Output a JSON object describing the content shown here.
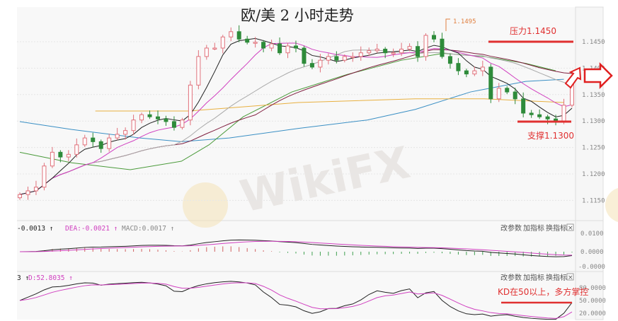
{
  "chart_data": {
    "type": "candlestick",
    "title": "欧/美 2 小时走势",
    "y_ticks": [
      "1.1450",
      "1.1400",
      "1.1350",
      "1.1300",
      "1.1250",
      "1.1200",
      "1.1150"
    ],
    "ylim": [
      1.1125,
      1.152
    ],
    "closes": [
      1.1161,
      1.1168,
      1.1175,
      1.1215,
      1.1241,
      1.1232,
      1.1237,
      1.1255,
      1.1268,
      1.1261,
      1.1248,
      1.1268,
      1.1275,
      1.1282,
      1.1302,
      1.1312,
      1.1308,
      1.1304,
      1.1299,
      1.1288,
      1.1302,
      1.1368,
      1.1422,
      1.1438,
      1.1438,
      1.1459,
      1.1469,
      1.1455,
      1.1449,
      1.1449,
      1.1438,
      1.1446,
      1.1429,
      1.1442,
      1.1438,
      1.1409,
      1.1402,
      1.1415,
      1.1422,
      1.1415,
      1.1422,
      1.1422,
      1.1429,
      1.1433,
      1.1436,
      1.1429,
      1.1429,
      1.1436,
      1.1441,
      1.1422,
      1.1462,
      1.1455,
      1.1422,
      1.1409,
      1.1395,
      1.1389,
      1.1395,
      1.1402,
      1.1342,
      1.1362,
      1.1355,
      1.1342,
      1.1315,
      1.1312,
      1.1308,
      1.1304,
      1.13,
      1.133,
      1.138
    ],
    "overlay_lines": [
      {
        "color": "#3a8fc4",
        "points": [
          [
            0,
            1.1299
          ],
          [
            6.4,
            1.1284
          ],
          [
            14.8,
            1.1268
          ],
          [
            19.9,
            1.1261
          ],
          [
            25.8,
            1.1268
          ],
          [
            34.3,
            1.1286
          ],
          [
            42.8,
            1.1302
          ],
          [
            48.7,
            1.1322
          ],
          [
            55.5,
            1.1355
          ],
          [
            62.3,
            1.1375
          ],
          [
            67,
            1.1379
          ]
        ]
      },
      {
        "color": "#4a9a3a",
        "points": [
          [
            0,
            1.1241
          ],
          [
            6.4,
            1.1221
          ],
          [
            13.6,
            1.1208
          ],
          [
            19.9,
            1.1224
          ],
          [
            23.3,
            1.1255
          ],
          [
            27.5,
            1.1308
          ],
          [
            33.5,
            1.1355
          ],
          [
            40.3,
            1.1388
          ],
          [
            47,
            1.1415
          ],
          [
            52.1,
            1.1428
          ],
          [
            57.2,
            1.1422
          ],
          [
            62.3,
            1.1409
          ],
          [
            66,
            1.1395
          ]
        ]
      },
      {
        "color": "#e8b040",
        "points": [
          [
            9.3,
            1.1319
          ],
          [
            20.8,
            1.1319
          ],
          [
            34.3,
            1.1335
          ],
          [
            48.7,
            1.1342
          ],
          [
            57.2,
            1.1342
          ],
          [
            67,
            1.1335
          ]
        ]
      }
    ],
    "peak_label": "1.1495",
    "resistance": {
      "label": "压力1.1450",
      "value": 1.145
    },
    "support": {
      "label": "支撑1.1300",
      "value": 1.13
    },
    "colors": {
      "up": "#e0707a",
      "down": "#2e8b3a",
      "ma5": "#222222",
      "ma10": "#d040c0",
      "ma20": "#aaaaaa",
      "ma30": "#802040",
      "annotation": "#e03030"
    }
  },
  "macd_panel": {
    "header": {
      "diff": "-0.0013 ↑",
      "dea": "DEA:-0.0021 ↑",
      "macd": "MACD:0.0017 ↑"
    },
    "y_ticks": [
      "0.0100",
      "0.0000",
      "-0.0000"
    ]
  },
  "kd_panel": {
    "header": {
      "k": "3 ↑",
      "d": "D:52.8035 ↑"
    },
    "y_ticks": [
      "80.0000",
      "50.0000",
      "20.0000"
    ],
    "annotation": "KD在50以上，多方掌控",
    "annotation_value": 50
  },
  "panel_buttons": {
    "modify": "改参数",
    "add": "加指标",
    "switch": "换指标",
    "close": "×"
  },
  "watermark": "WikiFX"
}
